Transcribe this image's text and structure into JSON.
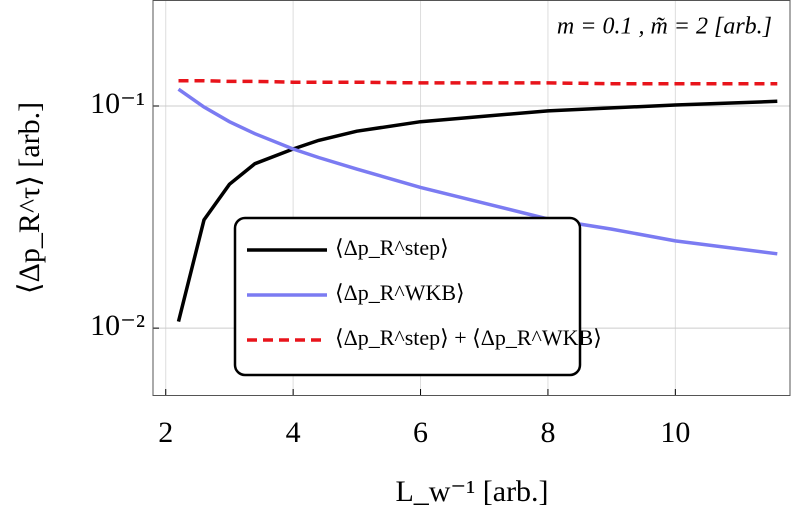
{
  "chart_data": {
    "type": "line",
    "annotation": "m = 0.1 ,  m̃ = 2 [arb.]",
    "x_label": "L_w⁻¹ [arb.]",
    "y_label": "⟨Δp_R^τ⟩ [arb.]",
    "x": [
      2.2,
      2.6,
      3.0,
      3.4,
      4.0,
      4.4,
      5,
      6,
      7,
      8,
      9,
      10,
      11.6
    ],
    "series": [
      {
        "name": "⟨Δp_R^step⟩",
        "color": "#000000",
        "dash": false,
        "values": [
          0.0107,
          0.0307,
          0.0444,
          0.055,
          0.064,
          0.07,
          0.077,
          0.085,
          0.09,
          0.095,
          0.098,
          0.101,
          0.105
        ]
      },
      {
        "name": "⟨Δp_R^WKB⟩",
        "color": "#7b7bf2",
        "dash": false,
        "values": [
          0.119,
          0.099,
          0.085,
          0.075,
          0.064,
          0.0586,
          0.052,
          0.043,
          0.0365,
          0.031,
          0.0279,
          0.0247,
          0.0216
        ]
      },
      {
        "name": "⟨Δp_R^step⟩ + ⟨Δp_R^WKB⟩",
        "color": "#e8141b",
        "dash": true,
        "values": [
          0.13,
          0.13,
          0.129,
          0.129,
          0.128,
          0.128,
          0.128,
          0.127,
          0.127,
          0.127,
          0.126,
          0.126,
          0.126
        ]
      }
    ],
    "xlim": [
      1.8,
      11.8
    ],
    "xticks": [
      2,
      4,
      6,
      8,
      10
    ],
    "ylim": [
      0.005,
      0.3
    ],
    "ylog": true,
    "yticks": [
      {
        "value": 0.01,
        "label": "10⁻²"
      },
      {
        "value": 0.1,
        "label": "10⁻¹"
      }
    ],
    "grid": true,
    "legend": "lower center"
  }
}
